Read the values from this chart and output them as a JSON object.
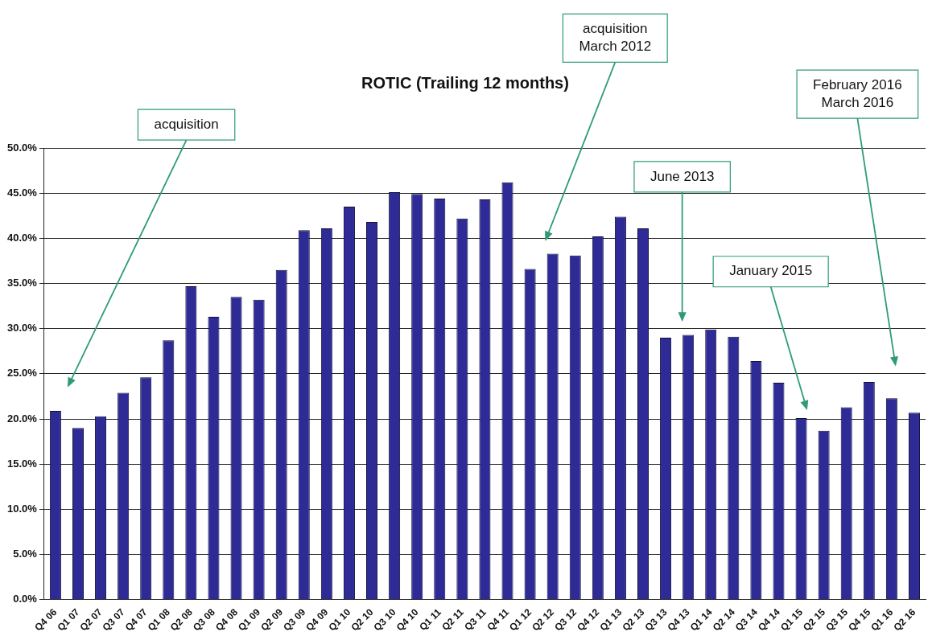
{
  "chart_data": {
    "type": "bar",
    "title": "ROTIC (Trailing 12 months)",
    "categories": [
      "Q4 06",
      "Q1 07",
      "Q2 07",
      "Q3 07",
      "Q4 07",
      "Q1 08",
      "Q2 08",
      "Q3 08",
      "Q4 08",
      "Q1 09",
      "Q2 09",
      "Q3 09",
      "Q4 09",
      "Q1 10",
      "Q2 10",
      "Q3 10",
      "Q4 10",
      "Q1 11",
      "Q2 11",
      "Q3 11",
      "Q4 11",
      "Q1 12",
      "Q2 12",
      "Q3 12",
      "Q4 12",
      "Q1 13",
      "Q2 13",
      "Q3 13",
      "Q4 13",
      "Q1 14",
      "Q2 14",
      "Q3 14",
      "Q4 14",
      "Q1 15",
      "Q2 15",
      "Q3 15",
      "Q4 15",
      "Q1 16",
      "Q2 16"
    ],
    "values": [
      20.9,
      19.0,
      20.3,
      22.9,
      24.6,
      28.7,
      34.7,
      31.3,
      33.5,
      33.2,
      36.5,
      40.9,
      41.1,
      43.5,
      41.8,
      45.1,
      44.9,
      44.4,
      42.2,
      44.3,
      46.2,
      36.6,
      38.3,
      38.1,
      40.2,
      42.4,
      41.1,
      29.0,
      29.3,
      29.9,
      29.1,
      26.4,
      24.0,
      20.1,
      18.7,
      21.3,
      24.1,
      22.3,
      20.7
    ],
    "color": "#2e2a96",
    "ylim": [
      0,
      50
    ],
    "yticks": [
      {
        "value": 0,
        "label": "0.0%"
      },
      {
        "value": 5,
        "label": "5.0%"
      },
      {
        "value": 10,
        "label": "10.0%"
      },
      {
        "value": 15,
        "label": "15.0%"
      },
      {
        "value": 20,
        "label": "20.0%"
      },
      {
        "value": 25,
        "label": "25.0%"
      },
      {
        "value": 30,
        "label": "30.0%"
      },
      {
        "value": 35,
        "label": "35.0%"
      },
      {
        "value": 40,
        "label": "40.0%"
      },
      {
        "value": 45,
        "label": "45.0%"
      },
      {
        "value": 50,
        "label": "50.0%"
      }
    ],
    "grid": "y",
    "legend": false,
    "annotations": [
      "acquisition",
      "acquisition\nMarch 2012",
      "June 2013",
      "January 2015",
      "February 2016\nMarch 2016"
    ]
  }
}
